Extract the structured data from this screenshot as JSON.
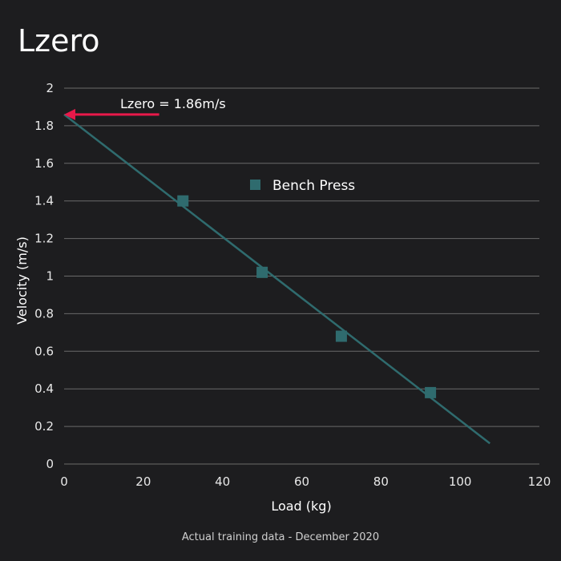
{
  "chart_data": {
    "type": "scatter",
    "title": "Lzero",
    "xlabel": "Load (kg)",
    "ylabel": "Velocity (m/s)",
    "xlim": [
      0,
      120
    ],
    "ylim": [
      0,
      2
    ],
    "x_ticks": [
      "0",
      "20",
      "40",
      "60",
      "80",
      "100",
      "120"
    ],
    "y_ticks": [
      "0",
      "0.2",
      "0.4",
      "0.6",
      "0.8",
      "1",
      "1.2",
      "1.4",
      "1.6",
      "1.8",
      "2"
    ],
    "grid": "horizontal",
    "series": [
      {
        "name": "Bench Press",
        "marker": "square",
        "color": "#2f6b6e",
        "points": [
          {
            "x": 30,
            "y": 1.4
          },
          {
            "x": 50,
            "y": 1.02
          },
          {
            "x": 70,
            "y": 0.68
          },
          {
            "x": 92.5,
            "y": 0.38
          }
        ]
      }
    ],
    "trendline": {
      "color": "#2f6b6e",
      "x_start": 0,
      "y_start": 1.86,
      "x_end": 107.5,
      "y_end": 0.11
    },
    "annotation": {
      "text": "Lzero = 1.86m/s",
      "arrow_color": "#e8194a",
      "arrow_from_x": 24,
      "arrow_to_x": 0,
      "arrow_y": 1.86
    },
    "caption": "Actual training data - December 2020",
    "legend_position": "center"
  }
}
